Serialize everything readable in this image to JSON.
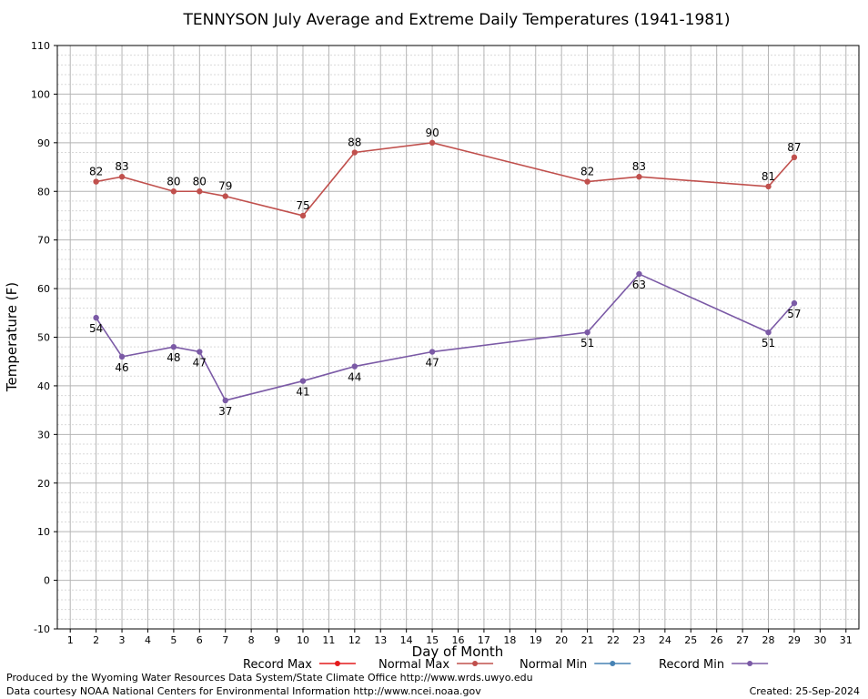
{
  "chart_data": {
    "type": "line",
    "title": "TENNYSON July Average and Extreme Daily Temperatures (1941-1981)",
    "xlabel": "Day of Month",
    "ylabel": "Temperature (F)",
    "xlim": [
      0.5,
      31.5
    ],
    "ylim": [
      -10,
      110
    ],
    "x_ticks": [
      1,
      2,
      3,
      4,
      5,
      6,
      7,
      8,
      9,
      10,
      11,
      12,
      13,
      14,
      15,
      16,
      17,
      18,
      19,
      20,
      21,
      22,
      23,
      24,
      25,
      26,
      27,
      28,
      29,
      30,
      31
    ],
    "y_ticks": [
      -10,
      0,
      10,
      20,
      30,
      40,
      50,
      60,
      70,
      80,
      90,
      100,
      110
    ],
    "grid": true,
    "legend_position": "bottom",
    "legend": [
      {
        "name": "Record Max",
        "color": "#e41a1c"
      },
      {
        "name": "Normal Max",
        "color": "#c0504d"
      },
      {
        "name": "Normal Min",
        "color": "#4682b4"
      },
      {
        "name": "Record Min",
        "color": "#7b5aa6"
      }
    ],
    "series": [
      {
        "name": "Normal Max",
        "color": "#c0504d",
        "label_position": "above",
        "x": [
          2,
          3,
          5,
          6,
          7,
          10,
          12,
          15,
          21,
          23,
          28,
          29
        ],
        "values": [
          82,
          83,
          80,
          80,
          79,
          75,
          88,
          90,
          82,
          83,
          81,
          87
        ]
      },
      {
        "name": "Record Min",
        "color": "#7b5aa6",
        "label_position": "below",
        "x": [
          2,
          3,
          5,
          6,
          7,
          10,
          12,
          15,
          21,
          23,
          28,
          29
        ],
        "values": [
          54,
          46,
          48,
          47,
          37,
          41,
          44,
          47,
          51,
          63,
          51,
          57
        ]
      }
    ]
  },
  "footer": {
    "credit_1": "Produced by the Wyoming Water Resources Data System/State Climate Office http://www.wrds.uwyo.edu",
    "credit_2": "Data courtesy NOAA National Centers for Environmental Information http://www.ncei.noaa.gov",
    "created": "Created:  25-Sep-2024"
  }
}
